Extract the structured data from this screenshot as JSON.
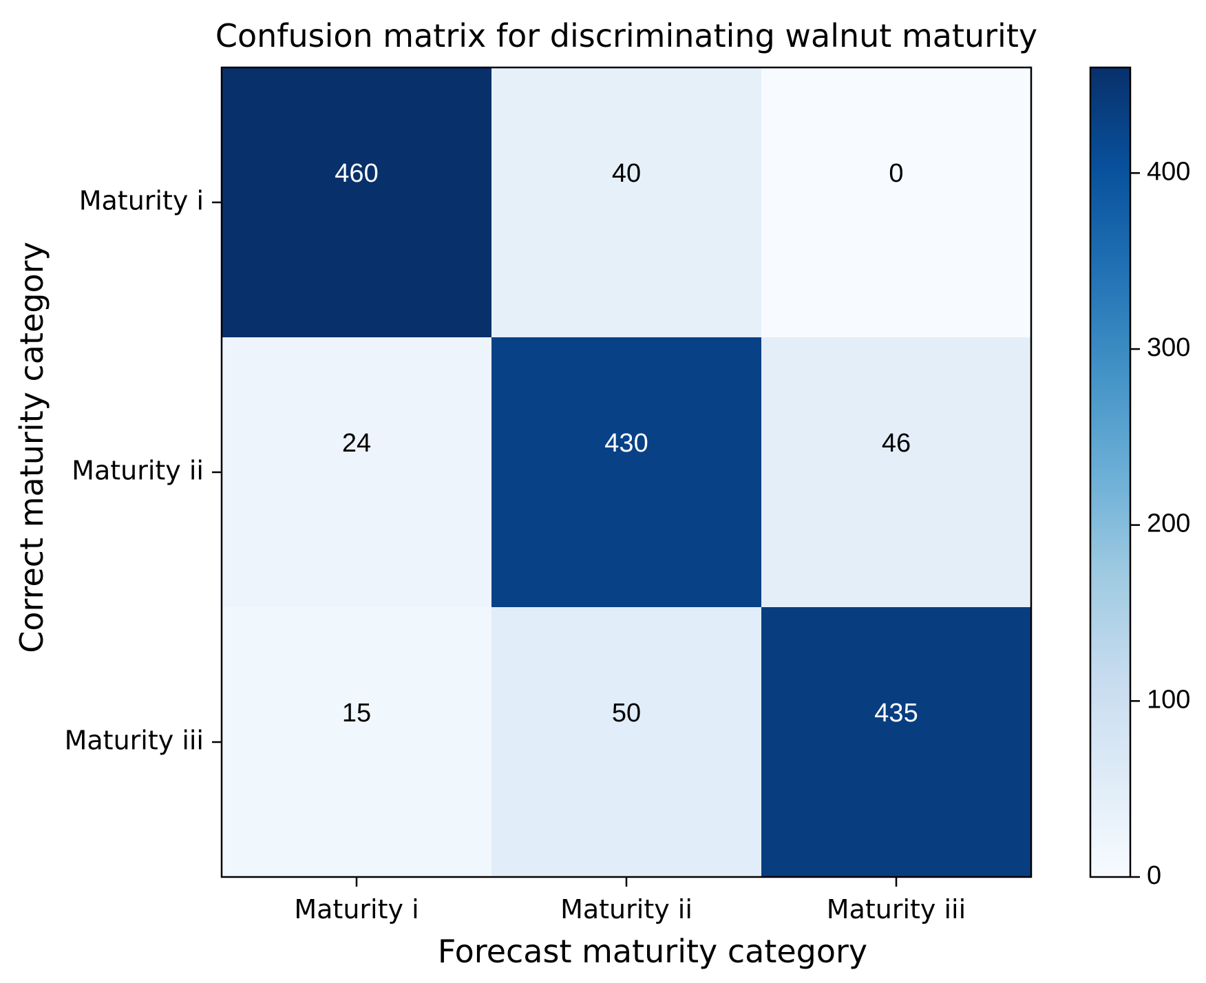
{
  "chart_data": {
    "type": "heatmap",
    "title": "Confusion matrix for discriminating walnut maturity",
    "xlabel": "Forecast maturity category",
    "ylabel": "Correct maturity category",
    "x_categories": [
      "Maturity i",
      "Maturity ii",
      "Maturity iii"
    ],
    "y_categories": [
      "Maturity i",
      "Maturity ii",
      "Maturity iii"
    ],
    "values": [
      [
        460,
        40,
        0
      ],
      [
        24,
        430,
        46
      ],
      [
        15,
        50,
        435
      ]
    ],
    "colorbar": {
      "range": [
        0,
        460
      ],
      "ticks": [
        0,
        100,
        200,
        300,
        400
      ],
      "colormap": "Blues",
      "stops": [
        "#f7fbff",
        "#deebf7",
        "#c6dbef",
        "#9ecae1",
        "#6baed6",
        "#4292c6",
        "#2171b5",
        "#08519c",
        "#08306b"
      ]
    },
    "text_colors": {
      "on_light": "#000000",
      "on_dark": "#ffffff"
    },
    "grid": false
  }
}
